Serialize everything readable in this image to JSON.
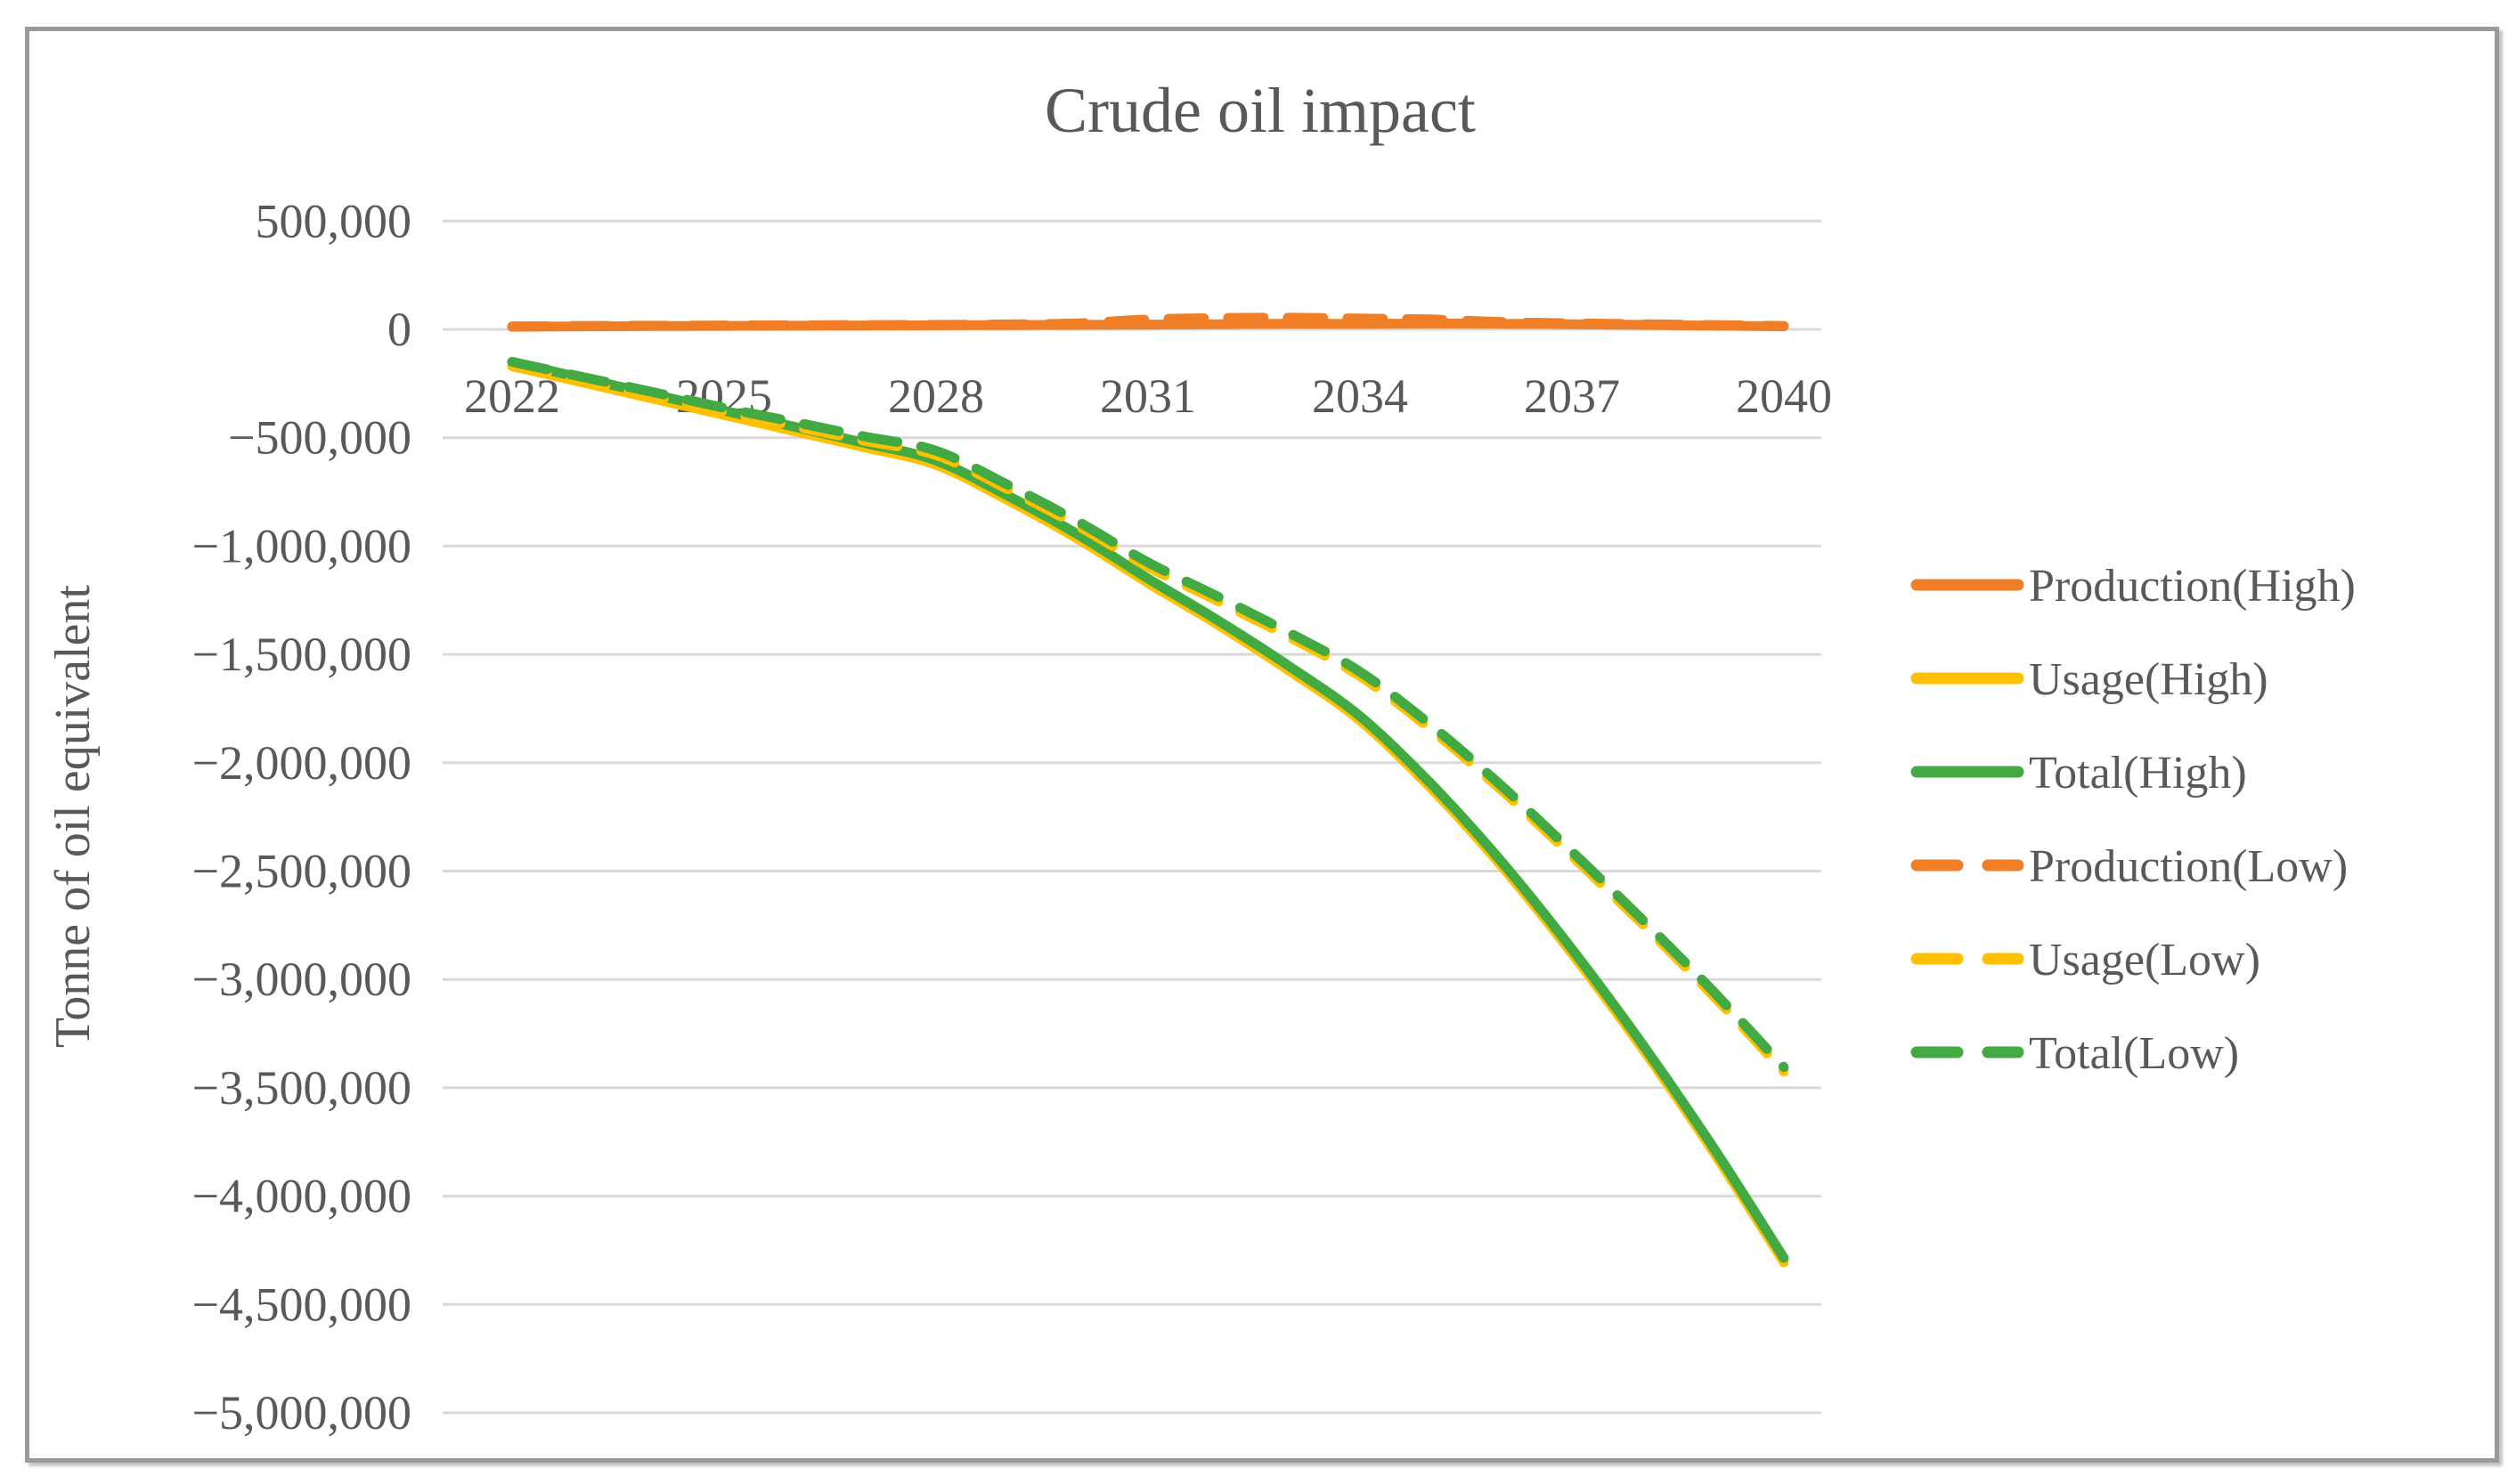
{
  "chart_data": {
    "type": "line",
    "title": "Crude oil impact",
    "ylabel": "Tonne of oil equivalent",
    "xlabel": "",
    "x_years": [
      2022,
      2023,
      2024,
      2025,
      2026,
      2027,
      2028,
      2029,
      2030,
      2031,
      2032,
      2033,
      2034,
      2035,
      2036,
      2037,
      2038,
      2039,
      2040
    ],
    "x_tick_years": [
      2022,
      2025,
      2028,
      2031,
      2034,
      2037,
      2040
    ],
    "x_tick_labels": [
      "2022",
      "2025",
      "2028",
      "2031",
      "2034",
      "2037",
      "2040"
    ],
    "y_tick_values": [
      500000,
      0,
      -500000,
      -1000000,
      -1500000,
      -2000000,
      -2500000,
      -3000000,
      -3500000,
      -4000000,
      -4500000,
      -5000000
    ],
    "y_tick_labels": [
      "500,000",
      "0",
      "−500,000",
      "−1,000,000",
      "−1,500,000",
      "−2,000,000",
      "−2,500,000",
      "−3,000,000",
      "−3,500,000",
      "−4,000,000",
      "−4,500,000",
      "−5,000,000"
    ],
    "ylim": [
      -5000000,
      500000
    ],
    "grid": "horizontal",
    "legend_position": "right",
    "colors": {
      "orange": "#F07E27",
      "yellow": "#FFC000",
      "green": "#43A943",
      "text": "#595959",
      "gridline": "#D9D9D9",
      "frame": "#9A9A9A"
    },
    "series": [
      {
        "name": "Production(High)",
        "color": "#F07E27",
        "style": "solid",
        "values": [
          12000,
          14000,
          15000,
          16000,
          17000,
          18000,
          19000,
          20000,
          21000,
          22000,
          24000,
          26000,
          25000,
          27000,
          26000,
          24000,
          21000,
          17000,
          14000
        ]
      },
      {
        "name": "Usage(High)",
        "color": "#FFC000",
        "style": "solid",
        "values": [
          -170000,
          -245000,
          -320000,
          -395000,
          -470000,
          -545000,
          -625000,
          -785000,
          -965000,
          -1170000,
          -1365000,
          -1575000,
          -1805000,
          -2115000,
          -2475000,
          -2880000,
          -3320000,
          -3795000,
          -4305000
        ]
      },
      {
        "name": "Total(High)",
        "color": "#43A943",
        "style": "solid",
        "values": [
          -150000,
          -225000,
          -300000,
          -375000,
          -450000,
          -525000,
          -605000,
          -765000,
          -945000,
          -1150000,
          -1345000,
          -1555000,
          -1785000,
          -2095000,
          -2455000,
          -2860000,
          -3300000,
          -3775000,
          -4285000
        ]
      },
      {
        "name": "Production(Low)",
        "color": "#F07E27",
        "style": "dashed",
        "values": [
          14000,
          16000,
          17000,
          18000,
          19000,
          20000,
          21000,
          23000,
          28000,
          46000,
          52000,
          54000,
          50000,
          46000,
          34000,
          28000,
          24000,
          20000,
          16000
        ]
      },
      {
        "name": "Usage(Low)",
        "color": "#FFC000",
        "style": "dashed",
        "values": [
          -170000,
          -240000,
          -310000,
          -382000,
          -448000,
          -515000,
          -580000,
          -735000,
          -905000,
          -1095000,
          -1255000,
          -1420000,
          -1600000,
          -1845000,
          -2125000,
          -2430000,
          -2745000,
          -3075000,
          -3425000
        ]
      },
      {
        "name": "Total(Low)",
        "color": "#43A943",
        "style": "dashed",
        "values": [
          -150000,
          -220000,
          -290000,
          -362000,
          -428000,
          -495000,
          -560000,
          -715000,
          -885000,
          -1075000,
          -1235000,
          -1400000,
          -1580000,
          -1825000,
          -2105000,
          -2410000,
          -2725000,
          -3055000,
          -3405000
        ]
      }
    ]
  }
}
